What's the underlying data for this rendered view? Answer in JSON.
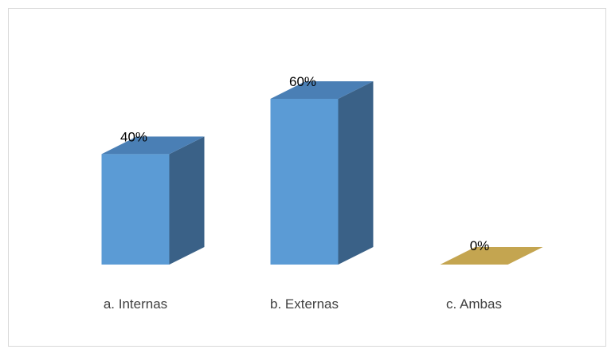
{
  "chart_data": {
    "type": "bar",
    "style": "3d-column",
    "categories": [
      "a. Internas",
      "b. Externas",
      "c. Ambas"
    ],
    "values": [
      40,
      60,
      0
    ],
    "data_labels": [
      "40%",
      "60%",
      "0%"
    ],
    "ylim": [
      0,
      60
    ],
    "grid": false,
    "legend": "none",
    "colors": {
      "front": [
        "#5b9bd5",
        "#5b9bd5",
        "#c9a94f"
      ],
      "top": [
        "#4a7fb5",
        "#4a7fb5",
        "#c4a550"
      ],
      "side": [
        "#3a6187",
        "#3a6187",
        "#a88a3a"
      ]
    }
  }
}
